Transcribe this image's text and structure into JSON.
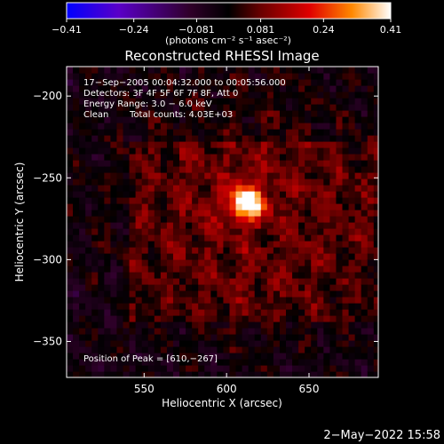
{
  "chart_data": {
    "type": "heatmap",
    "title": "Reconstructed RHESSI Image",
    "xlabel": "Heliocentric X (arcsec)",
    "ylabel": "Heliocentric Y (arcsec)",
    "xlim": [
      503,
      692
    ],
    "ylim": [
      -372,
      -182
    ],
    "x_ticks": [
      550,
      600,
      650
    ],
    "y_ticks": [
      -200,
      -250,
      -300,
      -350
    ],
    "x_tick_labels": [
      "550",
      "600",
      "650"
    ],
    "y_tick_labels": [
      "−200",
      "−250",
      "−300",
      "−350"
    ],
    "grid": false,
    "peak": {
      "x": 610,
      "y": -267,
      "value": 0.41
    },
    "colorbar": {
      "min": -0.41,
      "max": 0.41,
      "ticks": [
        -0.41,
        -0.24,
        -0.081,
        0.081,
        0.24,
        0.41
      ],
      "tick_labels": [
        "−0.41",
        "−0.24",
        "−0.081",
        "0.081",
        "0.24",
        "0.41"
      ],
      "units_label": "(photons cm⁻² s⁻¹ asec⁻²)",
      "colors": [
        "#0000ff",
        "#5a00c8",
        "#30002a",
        "#000000",
        "#6a0000",
        "#e00000",
        "#ff8800",
        "#ffffff"
      ]
    },
    "annotations": {
      "time_range": "17−Sep−2005 00:04:32.000 to 00:05:56.000",
      "detectors": "Detectors: 3F 4F 5F 6F 7F 8F, Att 0",
      "energy_range": "Energy Range: 3.0 − 6.0 keV",
      "method": "Clean",
      "total_counts": "Total counts: 4.03E+03",
      "peak_position": "Position of Peak = [610,−267]"
    }
  },
  "footer": {
    "date": "2−May−2022 15:58"
  }
}
